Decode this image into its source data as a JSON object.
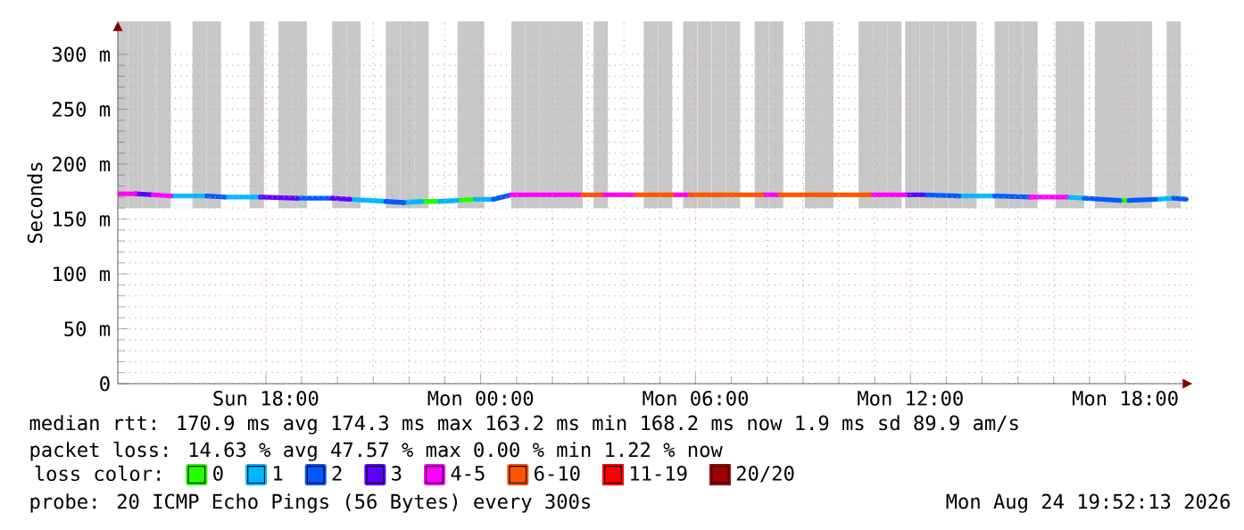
{
  "chart_data": {
    "type": "line",
    "ylabel": "Seconds",
    "legend_title": "loss color:",
    "xlim": [
      "2026-08-23T13:52",
      "2026-08-24T19:52"
    ],
    "xticks": [
      {
        "value": "2026-08-23T18:00",
        "label": "Sun 18:00"
      },
      {
        "value": "2026-08-24T00:00",
        "label": "Mon 00:00"
      },
      {
        "value": "2026-08-24T06:00",
        "label": "Mon 06:00"
      },
      {
        "value": "2026-08-24T12:00",
        "label": "Mon 12:00"
      },
      {
        "value": "2026-08-24T18:00",
        "label": "Mon 18:00"
      }
    ],
    "ylim": [
      0,
      330
    ],
    "yticks": [
      0,
      {
        "value": 50,
        "label": "50 m"
      },
      {
        "value": 100,
        "label": "100 m"
      },
      {
        "value": 150,
        "label": "150 m"
      },
      {
        "value": 200,
        "label": "200 m"
      },
      {
        "value": 250,
        "label": "250 m"
      },
      {
        "value": 300,
        "label": "300 m"
      }
    ],
    "grid": true,
    "legend": "bottom",
    "series": [
      {
        "type": "bar",
        "color": "#c8c8c8",
        "x": [
          "2026-08-23T13:57",
          "2026-08-23T14:21",
          "2026-08-23T14:45",
          "2026-08-23T15:09",
          "2026-08-23T16:09",
          "2026-08-23T16:33",
          "2026-08-23T17:45",
          "2026-08-23T18:33",
          "2026-08-23T18:57",
          "2026-08-23T20:03",
          "2026-08-23T20:27",
          "2026-08-23T21:33",
          "2026-08-23T21:57",
          "2026-08-23T22:21",
          "2026-08-23T23:33",
          "2026-08-23T23:54",
          "2026-08-24T01:03",
          "2026-08-24T01:27",
          "2026-08-24T01:51",
          "2026-08-24T02:15",
          "2026-08-24T02:39",
          "2026-08-24T03:21",
          "2026-08-24T04:45",
          "2026-08-24T05:09",
          "2026-08-24T05:51",
          "2026-08-24T06:15",
          "2026-08-24T06:39",
          "2026-08-24T07:03",
          "2026-08-24T07:51",
          "2026-08-24T08:15",
          "2026-08-24T09:15",
          "2026-08-24T09:39",
          "2026-08-24T10:45",
          "2026-08-24T11:09",
          "2026-08-24T11:33",
          "2026-08-24T12:03",
          "2026-08-24T12:27",
          "2026-08-24T12:51",
          "2026-08-24T13:15",
          "2026-08-24T13:39",
          "2026-08-24T14:33",
          "2026-08-24T14:57",
          "2026-08-24T15:21",
          "2026-08-24T16:15",
          "2026-08-24T16:39",
          "2026-08-24T17:21",
          "2026-08-24T17:45",
          "2026-08-24T18:09",
          "2026-08-24T18:33",
          "2026-08-24T19:21"
        ],
        "base": [
          160,
          160,
          160,
          160,
          160,
          160,
          160,
          160,
          160,
          160,
          160,
          160,
          160,
          160,
          160,
          160,
          160,
          160,
          160,
          160,
          160,
          160,
          160,
          160,
          160,
          160,
          160,
          160,
          160,
          160,
          160,
          160,
          160,
          160,
          160,
          160,
          160,
          160,
          160,
          160,
          160,
          160,
          160,
          160,
          160,
          160,
          160,
          160,
          160,
          160
        ],
        "values": [
          170,
          170,
          170,
          170,
          170,
          170,
          170,
          170,
          170,
          170,
          170,
          170,
          170,
          170,
          170,
          170,
          170,
          170,
          170,
          170,
          170,
          170,
          170,
          170,
          170,
          170,
          170,
          170,
          170,
          170,
          170,
          170,
          170,
          170,
          170,
          170,
          170,
          170,
          170,
          170,
          170,
          170,
          170,
          170,
          170,
          170,
          170,
          170,
          170,
          170
        ]
      },
      {
        "name": "0",
        "color": "#26ff00",
        "x": [
          "2026-08-23T22:21",
          "2026-08-23T22:51",
          "2026-08-23T23:06",
          "2026-08-23T23:21",
          "2026-08-23T23:51",
          "2026-08-24T08:00",
          "2026-08-24T17:51",
          "2026-08-24T18:06"
        ],
        "values": [
          166,
          166,
          null,
          167,
          168,
          null,
          167,
          167
        ]
      },
      {
        "name": "1",
        "color": "#00b8ff",
        "x": [
          "2026-08-23T15:21",
          "2026-08-23T16:21",
          "2026-08-23T16:36",
          "2026-08-23T16:51",
          "2026-08-23T17:51",
          "2026-08-23T19:00",
          "2026-08-23T20:21",
          "2026-08-23T21:21",
          "2026-08-23T21:36",
          "2026-08-23T21:51",
          "2026-08-23T22:21",
          "2026-08-23T22:36",
          "2026-08-23T22:51",
          "2026-08-23T23:21",
          "2026-08-23T23:36",
          "2026-08-23T23:51",
          "2026-08-24T00:21",
          "2026-08-24T06:00",
          "2026-08-24T13:21",
          "2026-08-24T14:21",
          "2026-08-24T15:00",
          "2026-08-24T16:21",
          "2026-08-24T16:51",
          "2026-08-24T17:30",
          "2026-08-24T18:51",
          "2026-08-24T19:21"
        ],
        "values": [
          171,
          171,
          null,
          170,
          170,
          null,
          168,
          166,
          null,
          165,
          166,
          null,
          166,
          167,
          null,
          168,
          168,
          null,
          171,
          171,
          null,
          170,
          169,
          null,
          168,
          169
        ]
      },
      {
        "name": "2",
        "color": "#0059ff",
        "x": [
          "2026-08-23T16:21",
          "2026-08-23T16:51",
          "2026-08-23T17:30",
          "2026-08-23T18:51",
          "2026-08-23T19:51",
          "2026-08-23T20:30",
          "2026-08-23T21:21",
          "2026-08-23T21:51",
          "2026-08-23T23:00",
          "2026-08-24T00:21",
          "2026-08-24T00:51",
          "2026-08-24T06:00",
          "2026-08-24T12:21",
          "2026-08-24T13:21",
          "2026-08-24T13:48",
          "2026-08-24T14:21",
          "2026-08-24T15:21",
          "2026-08-24T16:00",
          "2026-08-24T16:51",
          "2026-08-24T17:51",
          "2026-08-24T18:00",
          "2026-08-24T18:06",
          "2026-08-24T18:51",
          "2026-08-24T19:06",
          "2026-08-24T19:21",
          "2026-08-24T19:42"
        ],
        "values": [
          171,
          170,
          null,
          169,
          169,
          null,
          166,
          165,
          null,
          168,
          172,
          null,
          172,
          171,
          null,
          171,
          170,
          null,
          169,
          167,
          null,
          167,
          168,
          null,
          169,
          168
        ]
      },
      {
        "name": "3",
        "color": "#5e00ff",
        "x": [
          "2026-08-23T14:21",
          "2026-08-23T14:51",
          "2026-08-23T16:00",
          "2026-08-23T17:51",
          "2026-08-23T18:51",
          "2026-08-23T19:18",
          "2026-08-23T19:51",
          "2026-08-23T20:21",
          "2026-08-24T04:00",
          "2026-08-24T11:51",
          "2026-08-24T12:21"
        ],
        "values": [
          173,
          172,
          null,
          170,
          169,
          null,
          169,
          168,
          null,
          172,
          172
        ]
      },
      {
        "name": "4-5",
        "color": "#ff00ff",
        "x": [
          "2026-08-23T13:52",
          "2026-08-23T14:21",
          "2026-08-23T14:36",
          "2026-08-23T14:51",
          "2026-08-23T15:21",
          "2026-08-23T20:00",
          "2026-08-24T00:51",
          "2026-08-24T02:51",
          "2026-08-24T03:06",
          "2026-08-24T03:21",
          "2026-08-24T04:21",
          "2026-08-24T04:51",
          "2026-08-24T05:21",
          "2026-08-24T05:51",
          "2026-08-24T06:48",
          "2026-08-24T07:51",
          "2026-08-24T08:21",
          "2026-08-24T09:36",
          "2026-08-24T10:51",
          "2026-08-24T11:51",
          "2026-08-24T13:36",
          "2026-08-24T15:21",
          "2026-08-24T16:21"
        ],
        "values": [
          173,
          173,
          null,
          172,
          171,
          null,
          172,
          172,
          null,
          172,
          172,
          null,
          172,
          172,
          null,
          172,
          172,
          null,
          172,
          172,
          null,
          170,
          170
        ]
      },
      {
        "name": "6-10",
        "color": "#ff5500",
        "x": [
          "2026-08-24T02:51",
          "2026-08-24T03:21",
          "2026-08-24T03:51",
          "2026-08-24T04:21",
          "2026-08-24T05:21",
          "2026-08-24T05:36",
          "2026-08-24T05:51",
          "2026-08-24T07:51",
          "2026-08-24T08:06",
          "2026-08-24T08:21",
          "2026-08-24T10:51"
        ],
        "values": [
          172,
          172,
          null,
          172,
          172,
          null,
          172,
          172,
          null,
          172,
          172
        ]
      },
      {
        "name": "11-19",
        "color": "#ff0000"
      },
      {
        "name": "20/20",
        "color": "#a10000"
      }
    ],
    "annotations": [
      "median rtt: 170.9 ms avg 174.3 ms max 163.2 ms min 168.2 ms now 1.9 ms sd 89.9 am/s",
      "packet loss: 14.63 % avg 47.57 % max 0.00 % min 1.22 % now",
      "probe: 20 ICMP Echo Pings (56 Bytes) every 300s",
      "Mon Aug 24 19:52:13 2026"
    ]
  }
}
